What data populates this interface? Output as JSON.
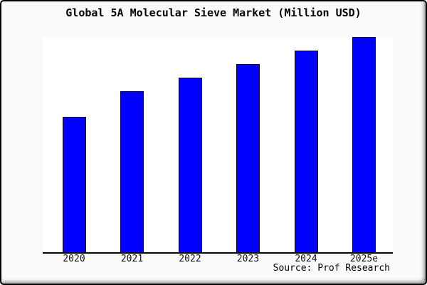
{
  "window": {
    "title": "Global 5A Molecular Sieve Market (Million USD)"
  },
  "source_label": "Source: Prof Research",
  "colors": {
    "background": "#fafafa",
    "plot_background": "#ffffff",
    "bar_fill": "#0000fe",
    "bar_border": "#000000",
    "axis_line": "#000000",
    "frame_border": "#000000",
    "text": "#000000"
  },
  "chart_data": {
    "type": "bar",
    "title": "Global 5A Molecular Sieve Market (Million USD)",
    "categories": [
      "2020",
      "2021",
      "2022",
      "2023",
      "2024",
      "2025e"
    ],
    "values": [
      100,
      119,
      129,
      139,
      149,
      159
    ],
    "values_unit": "relative index estimated from bar heights (no y-axis labels visible; 2020 = 100)",
    "xlabel": "",
    "ylabel": "",
    "ylim": [
      0,
      159
    ],
    "grid": false,
    "legend": false,
    "source": "Source: Prof Research"
  }
}
